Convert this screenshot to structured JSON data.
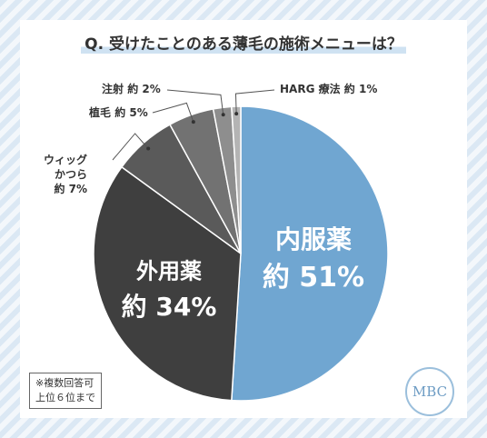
{
  "chart_data": {
    "type": "pie",
    "title": "Q. 受けたことのある薄毛の施術メニューは？",
    "categories": [
      "内服薬",
      "外用薬",
      "ウィッグ\nかつら",
      "植毛",
      "注射",
      "HARG 療法"
    ],
    "values": [
      51,
      34,
      7,
      5,
      2,
      1
    ],
    "value_labels": [
      "約 51%",
      "約 34%",
      "約 7%",
      "約 5%",
      "約 2%",
      "約 1%"
    ],
    "colors": [
      "#70a6d1",
      "#3f3f3f",
      "#5a5a5a",
      "#727272",
      "#8e8e8e",
      "#b4b4b4"
    ],
    "note": "※複数回答可\n上位６位まで",
    "logo": "MBC"
  }
}
